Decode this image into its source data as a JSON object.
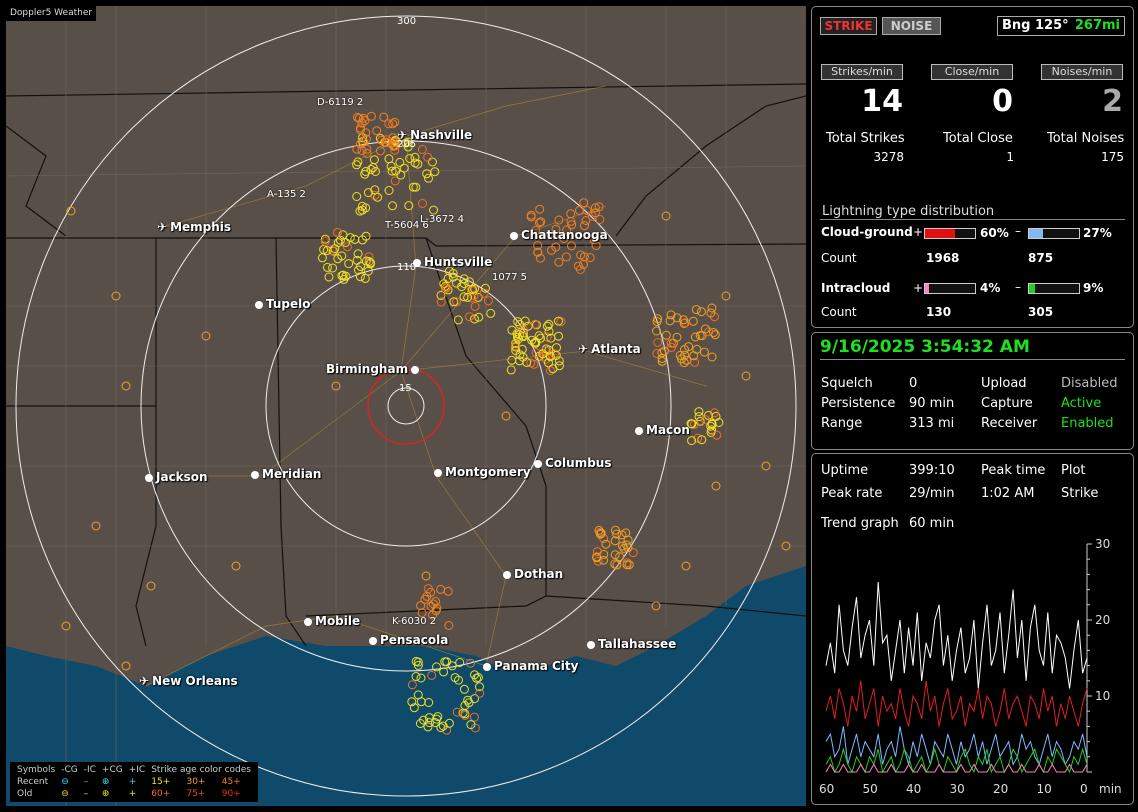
{
  "app": {
    "title": "Doppler5 Weather"
  },
  "map": {
    "ring_labels": [
      "300",
      "205",
      "110",
      "15"
    ],
    "cities": [
      {
        "name": "Nashville",
        "icon": "airport-icon"
      },
      {
        "name": "Memphis",
        "icon": "airport-icon"
      },
      {
        "name": "Chattanooga",
        "icon": "city-dot-icon"
      },
      {
        "name": "Huntsville",
        "icon": "city-dot-icon"
      },
      {
        "name": "Tupelo",
        "icon": "city-dot-icon"
      },
      {
        "name": "Atlanta",
        "icon": "airport-icon"
      },
      {
        "name": "Birmingham",
        "icon": "city-dot-icon"
      },
      {
        "name": "Macon",
        "icon": "city-dot-icon"
      },
      {
        "name": "Jackson",
        "icon": "city-dot-icon"
      },
      {
        "name": "Meridian",
        "icon": "city-dot-icon"
      },
      {
        "name": "Montgomery",
        "icon": "city-dot-icon"
      },
      {
        "name": "Columbus",
        "icon": "city-dot-icon"
      },
      {
        "name": "Dothan",
        "icon": "city-dot-icon"
      },
      {
        "name": "Mobile",
        "icon": "city-dot-icon"
      },
      {
        "name": "Pensacola",
        "icon": "city-dot-icon"
      },
      {
        "name": "Panama City",
        "icon": "city-dot-icon"
      },
      {
        "name": "Tallahassee",
        "icon": "city-dot-icon"
      },
      {
        "name": "New Orleans",
        "icon": "airport-icon"
      }
    ],
    "strike_labels": [
      "D-6119  2",
      "A-135  2",
      "T-5604  6",
      "L-3672  4",
      "1077  5",
      "K-6030  2"
    ],
    "legend": {
      "header": [
        "Symbols",
        "-CG",
        "-IC",
        "+CG",
        "+IC",
        "Strike age color codes"
      ],
      "recent": {
        "label": "Recent",
        "ages": [
          "15+",
          "30+",
          "45+"
        ]
      },
      "old": {
        "label": "Old",
        "ages": [
          "60+",
          "75+",
          "90+"
        ]
      }
    }
  },
  "strike_panel": {
    "strike_button": "STRIKE",
    "noise_button": "NOISE",
    "bearing": "Bng 125°",
    "distance": "267mi",
    "rate_buttons": [
      "Strikes/min",
      "Close/min",
      "Noises/min"
    ],
    "rates": [
      "14",
      "0",
      "2"
    ],
    "totals": [
      {
        "label": "Total Strikes",
        "value": "3278"
      },
      {
        "label": "Total Close",
        "value": "1"
      },
      {
        "label": "Total Noises",
        "value": "175"
      }
    ],
    "distribution": {
      "title": "Lightning type distribution",
      "cg_label": "Cloud-ground",
      "ic_label": "Intracloud",
      "count_label": "Count",
      "cg_pos_pct": "60%",
      "cg_neg_pct": "27%",
      "cg_pos_count": "1968",
      "cg_neg_count": "875",
      "ic_pos_pct": "4%",
      "ic_neg_pct": "9%",
      "ic_pos_count": "130",
      "ic_neg_count": "305",
      "levels": {
        "cg_pos": 0.6,
        "cg_neg": 0.27,
        "ic_pos": 0.04,
        "ic_neg": 0.09
      }
    }
  },
  "status_panel": {
    "datetime": "9/16/2025 3:54:32 AM",
    "rows": [
      {
        "k1": "Squelch",
        "v1": "0",
        "k2": "Upload",
        "v2": "Disabled"
      },
      {
        "k1": "Persistence",
        "v1": "90 min",
        "k2": "Capture",
        "v2": "Active"
      },
      {
        "k1": "Range",
        "v1": "313 mi",
        "k2": "Receiver",
        "v2": "Enabled"
      }
    ]
  },
  "trend_panel": {
    "uptime_label": "Uptime",
    "uptime": "399:10",
    "peak_time_label": "Peak time",
    "peak_time": "1:02 AM",
    "plot_label": "Plot",
    "plot": "Strike",
    "peak_rate_label": "Peak rate",
    "peak_rate": "29/min",
    "trend_label": "Trend graph",
    "trend_window": "60 min"
  },
  "chart_data": {
    "type": "line",
    "x": [
      60,
      59,
      58,
      57,
      56,
      55,
      54,
      53,
      52,
      51,
      50,
      49,
      48,
      47,
      46,
      45,
      44,
      43,
      42,
      41,
      40,
      39,
      38,
      37,
      36,
      35,
      34,
      33,
      32,
      31,
      30,
      29,
      28,
      27,
      26,
      25,
      24,
      23,
      22,
      21,
      20,
      19,
      18,
      17,
      16,
      15,
      14,
      13,
      12,
      11,
      10,
      9,
      8,
      7,
      6,
      5,
      4,
      3,
      2,
      1,
      0
    ],
    "x_ticks": [
      "60",
      "50",
      "40",
      "30",
      "20",
      "10",
      "0"
    ],
    "x_unit": "min",
    "y_ticks": [
      "30",
      "20",
      "10"
    ],
    "ylim": [
      0,
      30
    ],
    "series": [
      {
        "color": "#ffffff",
        "values": [
          14,
          17,
          13,
          22,
          16,
          14,
          19,
          23,
          15,
          18,
          20,
          14,
          25,
          17,
          18,
          12,
          16,
          20,
          13,
          19,
          14,
          21,
          12,
          17,
          15,
          20,
          22,
          14,
          18,
          12,
          16,
          19,
          13,
          15,
          20,
          11,
          17,
          22,
          14,
          16,
          21,
          13,
          18,
          24,
          15,
          20,
          12,
          19,
          22,
          16,
          14,
          21,
          13,
          18,
          17,
          15,
          11,
          16,
          20,
          13,
          15
        ]
      },
      {
        "color": "#e02020",
        "values": [
          8,
          10,
          7,
          11,
          9,
          6,
          10,
          8,
          12,
          7,
          9,
          11,
          6,
          10,
          8,
          9,
          7,
          11,
          8,
          6,
          10,
          9,
          7,
          12,
          8,
          10,
          6,
          9,
          11,
          7,
          8,
          10,
          6,
          9,
          8,
          11,
          7,
          10,
          9,
          6,
          8,
          11,
          7,
          9,
          10,
          8,
          6,
          10,
          9,
          7,
          11,
          8,
          10,
          6,
          9,
          7,
          10,
          8,
          6,
          9,
          11
        ]
      },
      {
        "color": "#7fb8ff",
        "values": [
          4,
          5,
          2,
          3,
          6,
          1,
          3,
          5,
          2,
          4,
          3,
          2,
          5,
          1,
          3,
          4,
          2,
          6,
          3,
          1,
          4,
          2,
          5,
          3,
          1,
          4,
          3,
          2,
          5,
          3,
          1,
          4,
          2,
          3,
          5,
          2,
          4,
          1,
          3,
          5,
          2,
          3,
          4,
          1,
          2,
          5,
          3,
          4,
          2,
          1,
          3,
          5,
          2,
          4,
          3,
          1,
          2,
          4,
          3,
          5,
          2
        ]
      },
      {
        "color": "#20d020",
        "values": [
          1,
          2,
          0,
          1,
          3,
          1,
          0,
          2,
          1,
          0,
          2,
          1,
          3,
          0,
          1,
          2,
          0,
          1,
          3,
          2,
          0,
          1,
          2,
          0,
          1,
          3,
          1,
          0,
          2,
          1,
          0,
          2,
          3,
          1,
          0,
          2,
          1,
          3,
          0,
          1,
          2,
          0,
          1,
          3,
          2,
          0,
          1,
          2,
          3,
          1,
          0,
          2,
          1,
          3,
          2,
          1,
          0,
          2,
          1,
          3,
          1
        ]
      },
      {
        "color": "#ff80c0",
        "values": [
          0,
          1,
          0,
          0,
          1,
          0,
          0,
          0,
          1,
          0,
          0,
          1,
          0,
          0,
          0,
          1,
          0,
          0,
          0,
          1,
          0,
          0,
          1,
          0,
          0,
          0,
          1,
          0,
          0,
          0,
          0,
          1,
          0,
          0,
          1,
          0,
          0,
          0,
          1,
          0,
          0,
          0,
          1,
          0,
          0,
          1,
          0,
          0,
          0,
          1,
          0,
          0,
          1,
          0,
          0,
          0,
          1,
          0,
          0,
          0,
          1
        ]
      }
    ]
  }
}
